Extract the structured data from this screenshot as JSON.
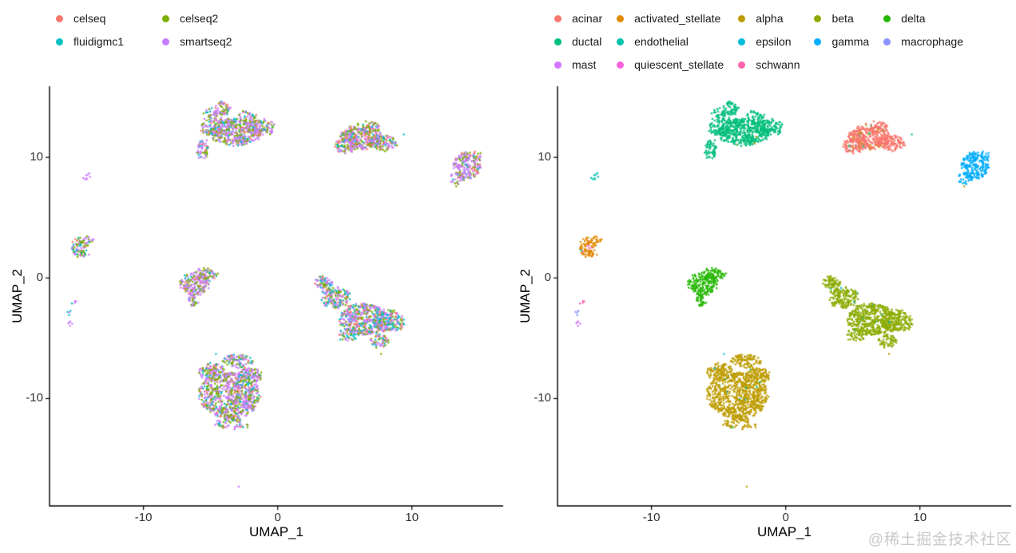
{
  "watermark": "@稀土掘金技术社区",
  "chart_data": [
    {
      "type": "scatter",
      "panel": "left",
      "color_by": "sequencing technology",
      "title": "",
      "xlabel": "UMAP_1",
      "ylabel": "UMAP_2",
      "xlim": [
        -17.0,
        16.8
      ],
      "ylim": [
        -18.9,
        15.9
      ],
      "x_ticks": [
        -10,
        0,
        10
      ],
      "y_ticks": [
        -10,
        0,
        10
      ],
      "grid": false,
      "legend_position": "top",
      "legend": [
        {
          "label": "celseq",
          "color": "#F8766D",
          "col": 1,
          "row": 1
        },
        {
          "label": "fluidigmc1",
          "color": "#00BFC4",
          "col": 1,
          "row": 2
        },
        {
          "label": "celseq2",
          "color": "#7CAE00",
          "col": 2,
          "row": 1
        },
        {
          "label": "smartseq2",
          "color": "#C77CFF",
          "col": 2,
          "row": 2
        }
      ],
      "palette": {
        "celseq": "#F8766D",
        "celseq2": "#7CAE00",
        "fluidigmc1": "#00BFC4",
        "smartseq2": "#C77CFF"
      },
      "clusters": [
        {
          "name": "ductal-region",
          "blobs": [
            [
              -3.1,
              12.1,
              1.9,
              1.15,
              420
            ],
            [
              -4.9,
              12.9,
              0.85,
              1.25,
              130
            ],
            [
              -4.1,
              14.1,
              0.55,
              0.65,
              55
            ],
            [
              -5.6,
              10.7,
              0.5,
              0.85,
              55
            ],
            [
              -1.3,
              12.5,
              1.15,
              0.7,
              130
            ],
            [
              -2.3,
              13.4,
              0.7,
              0.5,
              40
            ]
          ],
          "colors": {
            "smartseq2": 0.5,
            "celseq2": 0.28,
            "fluidigmc1": 0.12,
            "celseq": 0.1
          }
        },
        {
          "name": "acinar-region",
          "blobs": [
            [
              6.2,
              11.7,
              1.55,
              1.0,
              330
            ],
            [
              7.9,
              11.2,
              1.05,
              0.6,
              110
            ],
            [
              5.1,
              11.0,
              0.8,
              0.65,
              90
            ],
            [
              6.8,
              12.5,
              0.9,
              0.45,
              50
            ]
          ],
          "colors": {
            "smartseq2": 0.4,
            "celseq2": 0.3,
            "celseq": 0.19,
            "fluidigmc1": 0.11
          }
        },
        {
          "name": "gamma-region",
          "blobs": [
            [
              14.1,
              9.3,
              1.05,
              1.1,
              200
            ],
            [
              13.4,
              8.2,
              0.5,
              0.5,
              35
            ],
            [
              14.8,
              10.1,
              0.45,
              0.4,
              20
            ]
          ],
          "colors": {
            "smartseq2": 0.55,
            "celseq2": 0.25,
            "fluidigmc1": 0.1,
            "celseq": 0.1
          }
        },
        {
          "name": "endothelial-dot",
          "blobs": [
            [
              -14.2,
              8.4,
              0.22,
              0.3,
              8
            ]
          ],
          "colors": {
            "smartseq2": 0.85,
            "fluidigmc1": 0.15
          }
        },
        {
          "name": "stellate-region",
          "blobs": [
            [
              -14.8,
              2.6,
              0.55,
              0.8,
              60
            ],
            [
              -14.25,
              3.05,
              0.5,
              0.4,
              28
            ],
            [
              -14.5,
              1.95,
              0.4,
              0.3,
              18
            ]
          ],
          "colors": {
            "celseq2": 0.33,
            "smartseq2": 0.32,
            "fluidigmc1": 0.2,
            "celseq": 0.15
          }
        },
        {
          "name": "delta-region",
          "blobs": [
            [
              -6.2,
              -0.5,
              1.05,
              1.0,
              190
            ],
            [
              -5.3,
              0.3,
              0.85,
              0.5,
              70
            ],
            [
              -6.3,
              -1.9,
              0.35,
              0.5,
              30
            ]
          ],
          "colors": {
            "smartseq2": 0.45,
            "celseq2": 0.34,
            "fluidigmc1": 0.11,
            "celseq": 0.1
          }
        },
        {
          "name": "schwann-dots",
          "blobs": [
            [
              -15.2,
              -2.05,
              0.18,
              0.25,
              4
            ]
          ],
          "colors": {
            "fluidigmc1": 0.5,
            "smartseq2": 0.5
          }
        },
        {
          "name": "macrophage-dots",
          "blobs": [
            [
              -15.6,
              -3.0,
              0.14,
              0.3,
              4
            ]
          ],
          "colors": {
            "smartseq2": 0.7,
            "fluidigmc1": 0.3
          }
        },
        {
          "name": "mast-dots",
          "blobs": [
            [
              -15.45,
              -3.9,
              0.14,
              0.35,
              5
            ]
          ],
          "colors": {
            "smartseq2": 1
          }
        },
        {
          "name": "beta-region",
          "blobs": [
            [
              6.4,
              -3.4,
              1.75,
              1.3,
              480
            ],
            [
              4.3,
              -1.6,
              1.1,
              0.9,
              170
            ],
            [
              3.4,
              -0.4,
              0.6,
              0.5,
              70
            ],
            [
              8.4,
              -3.6,
              1.05,
              0.9,
              170
            ],
            [
              7.6,
              -5.2,
              0.7,
              0.5,
              60
            ],
            [
              5.3,
              -4.7,
              0.8,
              0.5,
              50
            ]
          ],
          "colors": {
            "smartseq2": 0.38,
            "celseq2": 0.26,
            "fluidigmc1": 0.23,
            "celseq": 0.13
          }
        },
        {
          "name": "alpha-region",
          "blobs": [
            [
              -3.6,
              -9.7,
              2.25,
              1.95,
              780
            ],
            [
              -3.0,
              -6.9,
              1.15,
              0.6,
              100
            ],
            [
              -4.9,
              -7.8,
              0.95,
              0.7,
              120
            ],
            [
              -2.1,
              -8.1,
              0.9,
              0.65,
              110
            ],
            [
              -3.4,
              -12.1,
              1.3,
              0.5,
              70
            ]
          ],
          "colors": {
            "smartseq2": 0.47,
            "celseq2": 0.3,
            "fluidigmc1": 0.12,
            "celseq": 0.11
          }
        }
      ],
      "stray_points": [
        [
          -2.9,
          -17.3,
          "smartseq2"
        ],
        [
          13.3,
          7.6,
          "celseq2"
        ],
        [
          7.7,
          -6.3,
          "celseq2"
        ],
        [
          -4.6,
          -6.3,
          "fluidigmc1"
        ],
        [
          -5.3,
          -7.5,
          "fluidigmc1"
        ],
        [
          4.75,
          10.95,
          "fluidigmc1"
        ],
        [
          9.4,
          11.9,
          "fluidigmc1"
        ]
      ]
    },
    {
      "type": "scatter",
      "panel": "right",
      "color_by": "cell type",
      "title": "",
      "xlabel": "UMAP_1",
      "ylabel": "UMAP_2",
      "xlim": [
        -17.0,
        16.8
      ],
      "ylim": [
        -18.9,
        15.9
      ],
      "x_ticks": [
        -10,
        0,
        10
      ],
      "y_ticks": [
        -10,
        0,
        10
      ],
      "grid": false,
      "legend_position": "top",
      "legend": [
        {
          "label": "acinar",
          "color": "#F8766D",
          "col": 1,
          "row": 1
        },
        {
          "label": "ductal",
          "color": "#00BE7C",
          "col": 1,
          "row": 2
        },
        {
          "label": "mast",
          "color": "#D575FE",
          "col": 1,
          "row": 3
        },
        {
          "label": "activated_stellate",
          "color": "#E18A00",
          "col": 2,
          "row": 1
        },
        {
          "label": "endothelial",
          "color": "#00C1AB",
          "col": 2,
          "row": 2
        },
        {
          "label": "quiescent_stellate",
          "color": "#F962DD",
          "col": 2,
          "row": 3
        },
        {
          "label": "alpha",
          "color": "#BE9C00",
          "col": 3,
          "row": 1
        },
        {
          "label": "epsilon",
          "color": "#00BBDA",
          "col": 3,
          "row": 2
        },
        {
          "label": "schwann",
          "color": "#FF65AC",
          "col": 3,
          "row": 3
        },
        {
          "label": "beta",
          "color": "#8CAB00",
          "col": 4,
          "row": 1
        },
        {
          "label": "gamma",
          "color": "#00ACFC",
          "col": 4,
          "row": 2
        },
        {
          "label": "delta",
          "color": "#24B700",
          "col": 5,
          "row": 1
        },
        {
          "label": "macrophage",
          "color": "#8B93FF",
          "col": 5,
          "row": 2
        }
      ],
      "palette": {
        "acinar": "#F8766D",
        "activated_stellate": "#E18A00",
        "alpha": "#BE9C00",
        "beta": "#8CAB00",
        "delta": "#24B700",
        "ductal": "#00BE7C",
        "endothelial": "#00C1AB",
        "epsilon": "#00BBDA",
        "gamma": "#00ACFC",
        "macrophage": "#8B93FF",
        "mast": "#D575FE",
        "quiescent_stellate": "#F962DD",
        "schwann": "#FF65AC"
      },
      "clusters": [
        {
          "name": "ductal-region",
          "blobs": [
            [
              -3.1,
              12.1,
              1.9,
              1.15,
              420
            ],
            [
              -4.9,
              12.9,
              0.85,
              1.25,
              130
            ],
            [
              -4.1,
              14.1,
              0.55,
              0.65,
              55
            ],
            [
              -5.6,
              10.7,
              0.5,
              0.85,
              55
            ],
            [
              -1.3,
              12.5,
              1.15,
              0.7,
              130
            ],
            [
              -2.3,
              13.4,
              0.7,
              0.5,
              40
            ]
          ],
          "colors": {
            "ductal": 0.995,
            "alpha": 0.005
          }
        },
        {
          "name": "acinar-region",
          "blobs": [
            [
              6.2,
              11.7,
              1.55,
              1.0,
              330
            ],
            [
              7.9,
              11.2,
              1.05,
              0.6,
              110
            ],
            [
              5.1,
              11.0,
              0.8,
              0.65,
              90
            ],
            [
              6.8,
              12.5,
              0.9,
              0.45,
              50
            ]
          ],
          "colors": {
            "acinar": 0.95,
            "ductal": 0.02,
            "alpha": 0.02,
            "beta": 0.01
          }
        },
        {
          "name": "gamma-region",
          "blobs": [
            [
              14.1,
              9.3,
              1.05,
              1.1,
              200
            ],
            [
              13.4,
              8.2,
              0.5,
              0.5,
              35
            ],
            [
              14.8,
              10.1,
              0.45,
              0.4,
              20
            ]
          ],
          "colors": {
            "gamma": 1
          }
        },
        {
          "name": "endothelial-dot",
          "blobs": [
            [
              -14.2,
              8.4,
              0.22,
              0.3,
              8
            ]
          ],
          "colors": {
            "endothelial": 1
          }
        },
        {
          "name": "stellate-region",
          "blobs": [
            [
              -14.8,
              2.6,
              0.55,
              0.8,
              60
            ],
            [
              -14.25,
              3.05,
              0.5,
              0.4,
              28
            ],
            [
              -14.5,
              1.95,
              0.4,
              0.3,
              18
            ]
          ],
          "colors": {
            "activated_stellate": 0.95,
            "quiescent_stellate": 0.04,
            "endothelial": 0.01
          }
        },
        {
          "name": "delta-region",
          "blobs": [
            [
              -6.2,
              -0.5,
              1.05,
              1.0,
              190
            ],
            [
              -5.3,
              0.3,
              0.85,
              0.5,
              70
            ],
            [
              -6.3,
              -1.9,
              0.35,
              0.5,
              30
            ]
          ],
          "colors": {
            "delta": 1
          }
        },
        {
          "name": "schwann-dots",
          "blobs": [
            [
              -15.2,
              -2.05,
              0.18,
              0.25,
              4
            ]
          ],
          "colors": {
            "schwann": 1
          }
        },
        {
          "name": "macrophage-dots",
          "blobs": [
            [
              -15.6,
              -3.0,
              0.14,
              0.3,
              4
            ]
          ],
          "colors": {
            "macrophage": 1
          }
        },
        {
          "name": "mast-dots",
          "blobs": [
            [
              -15.45,
              -3.9,
              0.14,
              0.35,
              5
            ]
          ],
          "colors": {
            "mast": 1
          }
        },
        {
          "name": "beta-region",
          "blobs": [
            [
              6.4,
              -3.4,
              1.75,
              1.3,
              480
            ],
            [
              4.3,
              -1.6,
              1.1,
              0.9,
              170
            ],
            [
              3.4,
              -0.4,
              0.6,
              0.5,
              70
            ],
            [
              8.4,
              -3.6,
              1.05,
              0.9,
              170
            ],
            [
              7.6,
              -5.2,
              0.7,
              0.5,
              60
            ],
            [
              5.3,
              -4.7,
              0.8,
              0.5,
              50
            ]
          ],
          "colors": {
            "beta": 0.99,
            "epsilon": 0.006,
            "ductal": 0.004
          }
        },
        {
          "name": "alpha-region",
          "blobs": [
            [
              -3.6,
              -9.7,
              2.25,
              1.95,
              780
            ],
            [
              -3.0,
              -6.9,
              1.15,
              0.6,
              100
            ],
            [
              -4.9,
              -7.8,
              0.95,
              0.7,
              120
            ],
            [
              -2.1,
              -8.1,
              0.9,
              0.65,
              110
            ],
            [
              -3.4,
              -12.1,
              1.3,
              0.5,
              70
            ]
          ],
          "colors": {
            "alpha": 0.99,
            "epsilon": 0.005,
            "ductal": 0.005
          }
        }
      ],
      "stray_points": [
        [
          -2.9,
          -17.3,
          "alpha"
        ],
        [
          13.3,
          7.6,
          "alpha"
        ],
        [
          7.7,
          -6.3,
          "alpha"
        ],
        [
          -4.6,
          -6.3,
          "epsilon"
        ],
        [
          -5.3,
          -7.5,
          "epsilon"
        ],
        [
          4.75,
          10.95,
          "ductal"
        ],
        [
          9.4,
          11.9,
          "endothelial"
        ]
      ]
    }
  ]
}
